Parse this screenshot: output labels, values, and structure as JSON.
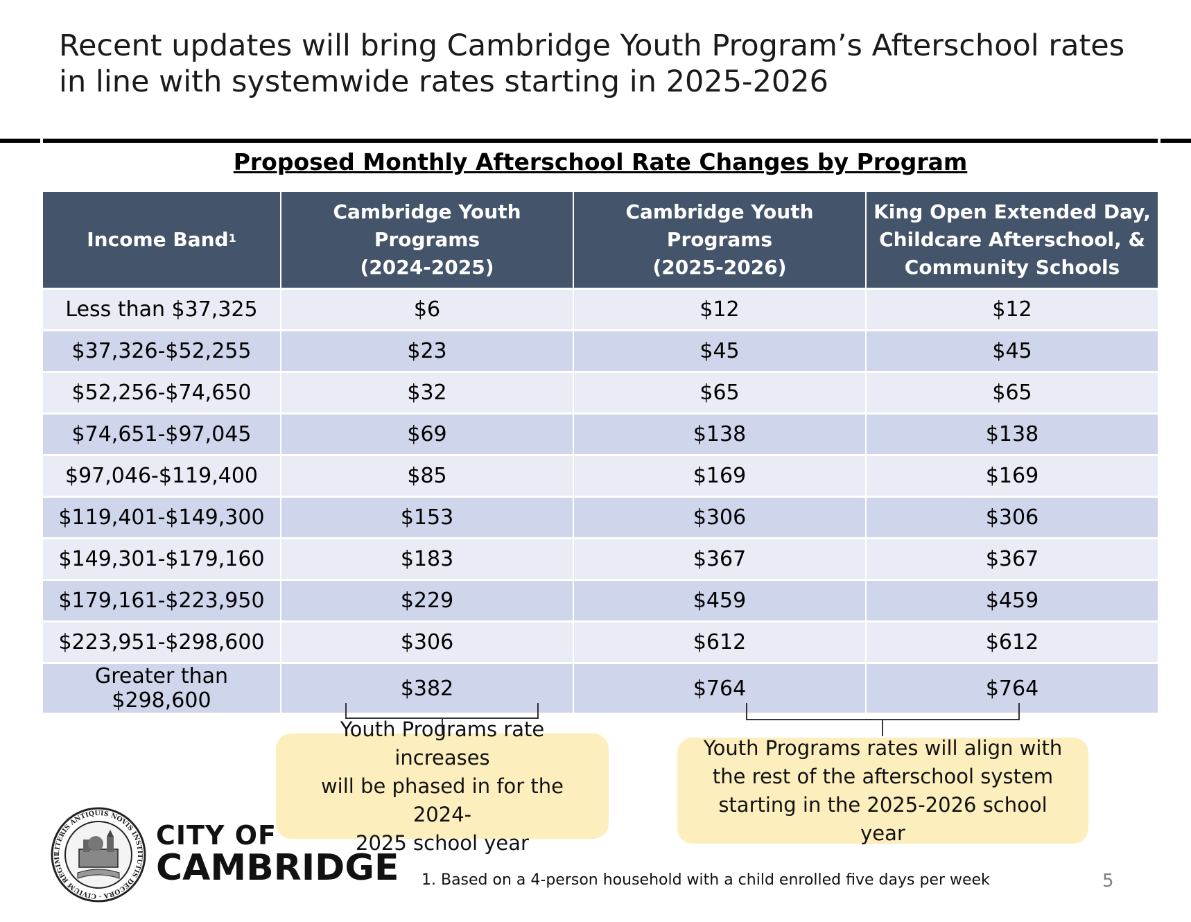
{
  "slide": {
    "title": "Recent updates will bring Cambridge Youth Program’s Afterschool rates in line with systemwide rates starting in 2025-2026",
    "page_number": "5",
    "footnote": "1. Based on a 4-person household with a child enrolled five days per week"
  },
  "table": {
    "title": "Proposed Monthly Afterschool Rate Changes by Program",
    "headers": {
      "income_band": "Income Band",
      "income_band_sup": "1",
      "cyp_2024_line1": "Cambridge Youth Programs",
      "cyp_2024_line2": "(2024-2025)",
      "cyp_2025_line1": "Cambridge Youth Programs",
      "cyp_2025_line2": "(2025-2026)",
      "king_open_line1": "King Open Extended Day,",
      "king_open_line2": "Childcare Afterschool, &",
      "king_open_line3": "Community Schools"
    },
    "rows": [
      {
        "band": "Less than $37,325",
        "cyp_2024": "$6",
        "cyp_2025": "$12",
        "king_open": "$12"
      },
      {
        "band": "$37,326-$52,255",
        "cyp_2024": "$23",
        "cyp_2025": "$45",
        "king_open": "$45"
      },
      {
        "band": "$52,256-$74,650",
        "cyp_2024": "$32",
        "cyp_2025": "$65",
        "king_open": "$65"
      },
      {
        "band": "$74,651-$97,045",
        "cyp_2024": "$69",
        "cyp_2025": "$138",
        "king_open": "$138"
      },
      {
        "band": "$97,046-$119,400",
        "cyp_2024": "$85",
        "cyp_2025": "$169",
        "king_open": "$169"
      },
      {
        "band": "$119,401-$149,300",
        "cyp_2024": "$153",
        "cyp_2025": "$306",
        "king_open": "$306"
      },
      {
        "band": "$149,301-$179,160",
        "cyp_2024": "$183",
        "cyp_2025": "$367",
        "king_open": "$367"
      },
      {
        "band": "$179,161-$223,950",
        "cyp_2024": "$229",
        "cyp_2025": "$459",
        "king_open": "$459"
      },
      {
        "band": "$223,951-$298,600",
        "cyp_2024": "$306",
        "cyp_2025": "$612",
        "king_open": "$612"
      },
      {
        "band": "Greater than $298,600",
        "cyp_2024": "$382",
        "cyp_2025": "$764",
        "king_open": "$764"
      }
    ]
  },
  "callouts": {
    "left_line1": "Youth Programs rate increases",
    "left_line2": "will be phased in for the 2024-",
    "left_line3": "2025 school year",
    "right_line1": "Youth Programs rates will align with",
    "right_line2": "the rest of the afterschool system",
    "right_line3": "starting in the 2025-2026 school year"
  },
  "logo": {
    "line1": "CITY OF",
    "line2": "CAMBRIDGE",
    "seal_text": "LITERIS ANTIQUIS NOVIS INSTITUTIS DECORA · CIVIUM REGIMINE DONATA A. D. 1846"
  },
  "colors": {
    "header_bg": "#44546a",
    "row_light": "#e9ebf5",
    "row_dark": "#cfd5ea",
    "callout_bg": "#fdeebd",
    "rule": "#000000"
  }
}
